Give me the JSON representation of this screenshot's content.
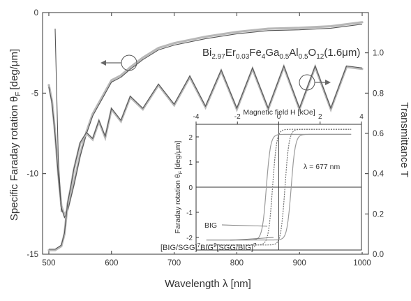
{
  "chart_data": [
    {
      "type": "line",
      "xlabel": "Wavelength λ [nm]",
      "ylabel_left": "Specific Faraday rotation θ",
      "ylabel_left_sub": "F",
      "ylabel_left_unit": "[deg/μm]",
      "ylabel_right": "Transmittance T",
      "xlim": [
        490,
        1010
      ],
      "ylim_left": [
        -15,
        0
      ],
      "ylim_right": [
        0.0,
        1.2
      ],
      "xticks": [
        "500",
        "600",
        "700",
        "800",
        "900",
        "1000"
      ],
      "yticks_left": [
        "0",
        "-5",
        "-10",
        "-15"
      ],
      "yticks_right": [
        "0.0",
        "0.2",
        "0.4",
        "0.6",
        "0.8",
        "1.0"
      ],
      "annotation": "Bi2.97Er0.03Fe4Ga0.5Al0.5O12(1.6μm)",
      "series": [
        {
          "axis": "left",
          "x": [
            500,
            505,
            510,
            515,
            520,
            525,
            530,
            540,
            550,
            560,
            570,
            580,
            590,
            600,
            615,
            630,
            650,
            675,
            700,
            750,
            800,
            850,
            900,
            950,
            1000
          ],
          "y": [
            -4.5,
            -5.5,
            -7.5,
            -10.0,
            -12.0,
            -12.6,
            -12.2,
            -10.6,
            -8.8,
            -7.4,
            -6.3,
            -5.6,
            -4.9,
            -4.2,
            -3.9,
            -3.4,
            -2.8,
            -2.2,
            -1.9,
            -1.5,
            -1.2,
            -1.0,
            -0.95,
            -0.85,
            -0.6
          ]
        },
        {
          "axis": "right",
          "x": [
            500,
            510,
            520,
            525,
            530,
            535,
            540,
            550,
            560,
            570,
            580,
            590,
            600,
            615,
            630,
            650,
            675,
            700,
            725,
            750,
            775,
            800,
            825,
            850,
            875,
            900,
            925,
            950,
            975,
            1000
          ],
          "y": [
            0.02,
            0.02,
            0.04,
            0.1,
            0.25,
            0.33,
            0.42,
            0.55,
            0.6,
            0.57,
            0.66,
            0.58,
            0.72,
            0.66,
            0.78,
            0.72,
            0.84,
            0.74,
            0.88,
            0.73,
            0.91,
            0.72,
            0.92,
            0.72,
            0.93,
            0.72,
            0.93,
            0.72,
            0.93,
            0.92
          ]
        }
      ]
    },
    {
      "type": "line",
      "xlabel": "Magnetic field H [kOe]",
      "ylabel": "Faraday rotation θ",
      "ylabel_sub": "F",
      "ylabel_unit": "[deg/μm]",
      "xlim": [
        -4,
        4
      ],
      "ylim": [
        -2.5,
        2.5
      ],
      "xticks": [
        "-4",
        "-2",
        "0",
        "2",
        "4"
      ],
      "yticks": [
        "2",
        "1",
        "0",
        "-1",
        "-2"
      ],
      "annotation": "λ = 677 nm",
      "legend": [
        "BIG",
        "[BIG/SGG]7BIG2[SGG/BIG]7"
      ],
      "series": [
        {
          "name": "BIG",
          "loop_up_switch_H": -0.6,
          "loop_down_switch_H": 0.6,
          "saturation": 2.1
        },
        {
          "name": "[BIG/SGG]7BIG2[SGG/BIG]7",
          "loop_up_switch_H": -0.3,
          "loop_down_switch_H": 0.3,
          "saturation": 2.3
        }
      ]
    }
  ]
}
